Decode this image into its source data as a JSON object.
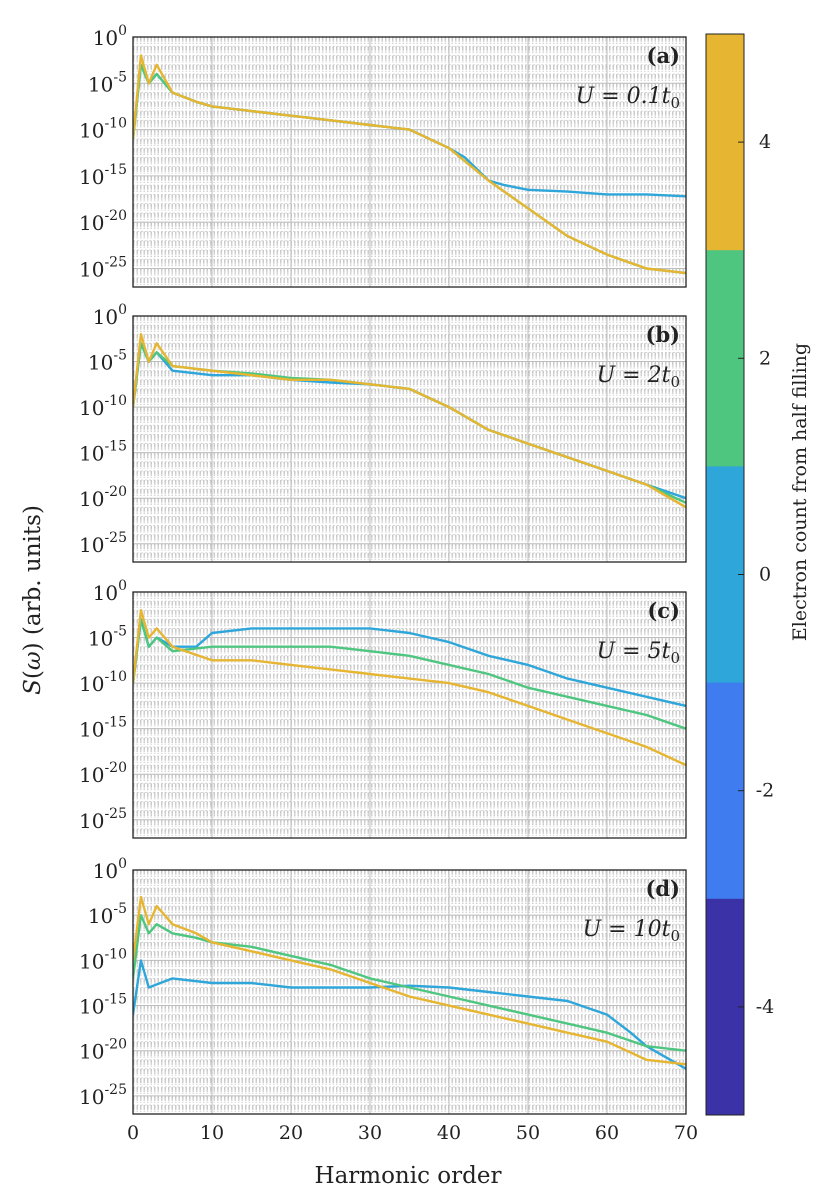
{
  "figure": {
    "ylabel": "S(ω) (arb. units)",
    "xlabel": "Harmonic order"
  },
  "chart_data": {
    "type": "line",
    "yscale": "log",
    "xlim": [
      0,
      70
    ],
    "ylim": [
      1e-27,
      1
    ],
    "xticks": [
      0,
      10,
      20,
      30,
      40,
      50,
      60,
      70
    ],
    "yticks": [
      {
        "exp": 0,
        "text": "10",
        "sup": "0"
      },
      {
        "exp": -5,
        "text": "10",
        "sup": "-5"
      },
      {
        "exp": -10,
        "text": "10",
        "sup": "-10"
      },
      {
        "exp": -15,
        "text": "10",
        "sup": "-15"
      },
      {
        "exp": -20,
        "text": "10",
        "sup": "-20"
      },
      {
        "exp": -25,
        "text": "10",
        "sup": "-25"
      }
    ],
    "colors": {
      "blue": "#2ea6da",
      "green": "#4ec680",
      "yellow": "#e6b531"
    },
    "panels": [
      {
        "label": "(a)",
        "annotation": {
          "lhs": "U",
          "rhs": "0.1t",
          "sub": "0"
        },
        "series": [
          {
            "name": "0",
            "color": "#2ea6da",
            "x": [
              0,
              1,
              2,
              3,
              5,
              8,
              10,
              15,
              20,
              25,
              30,
              35,
              40,
              42,
              45,
              47,
              50,
              55,
              60,
              65,
              70
            ],
            "log10y": [
              -11,
              -3,
              -5,
              -4,
              -6,
              -7,
              -7.5,
              -8,
              -8.5,
              -9,
              -9.5,
              -10,
              -12,
              -13,
              -15.5,
              -16,
              -16.5,
              -16.7,
              -17,
              -17,
              -17.2
            ]
          },
          {
            "name": "2",
            "color": "#4ec680",
            "x": [
              0,
              1,
              2,
              3,
              5,
              8,
              10,
              15,
              20,
              25,
              30,
              35,
              40,
              45,
              50,
              55,
              60,
              65,
              70
            ],
            "log10y": [
              -11,
              -3,
              -5,
              -4,
              -6,
              -7,
              -7.5,
              -8,
              -8.5,
              -9,
              -9.5,
              -10,
              -12,
              -15.5,
              -18.5,
              -21.5,
              -23.5,
              -25,
              -25.5
            ]
          },
          {
            "name": "4",
            "color": "#e6b531",
            "x": [
              0,
              1,
              2,
              3,
              5,
              8,
              10,
              15,
              20,
              25,
              30,
              35,
              40,
              45,
              50,
              55,
              60,
              65,
              70
            ],
            "log10y": [
              -11,
              -2,
              -5,
              -3,
              -6,
              -7,
              -7.5,
              -8,
              -8.5,
              -9,
              -9.5,
              -10,
              -12,
              -15.5,
              -18.5,
              -21.5,
              -23.5,
              -25,
              -25.5
            ]
          }
        ]
      },
      {
        "label": "(b)",
        "annotation": {
          "lhs": "U",
          "rhs": "2t",
          "sub": "0"
        },
        "series": [
          {
            "name": "0",
            "color": "#2ea6da",
            "x": [
              0,
              1,
              2,
              3,
              5,
              10,
              15,
              20,
              25,
              30,
              35,
              40,
              45,
              50,
              55,
              60,
              65,
              70
            ],
            "log10y": [
              -10,
              -3,
              -5,
              -4,
              -6,
              -6.5,
              -6.5,
              -7,
              -7.3,
              -7.5,
              -8,
              -10,
              -12.5,
              -14,
              -15.5,
              -17,
              -18.5,
              -20
            ]
          },
          {
            "name": "2",
            "color": "#4ec680",
            "x": [
              0,
              1,
              2,
              3,
              5,
              10,
              15,
              20,
              25,
              30,
              35,
              40,
              45,
              50,
              55,
              60,
              65,
              70
            ],
            "log10y": [
              -10,
              -3,
              -5,
              -4,
              -5.5,
              -6,
              -6.3,
              -6.8,
              -7,
              -7.5,
              -8,
              -10,
              -12.5,
              -14,
              -15.5,
              -17,
              -18.5,
              -20.5
            ]
          },
          {
            "name": "4",
            "color": "#e6b531",
            "x": [
              0,
              1,
              2,
              3,
              5,
              10,
              15,
              20,
              25,
              30,
              35,
              40,
              45,
              50,
              55,
              60,
              65,
              70
            ],
            "log10y": [
              -10,
              -2,
              -5,
              -3,
              -5.5,
              -6,
              -6.5,
              -7,
              -7,
              -7.5,
              -8,
              -10,
              -12.5,
              -14,
              -15.5,
              -17,
              -18.5,
              -21
            ]
          }
        ]
      },
      {
        "label": "(c)",
        "annotation": {
          "lhs": "U",
          "rhs": "5t",
          "sub": "0"
        },
        "series": [
          {
            "name": "0",
            "color": "#2ea6da",
            "x": [
              0,
              1,
              2,
              3,
              5,
              8,
              10,
              15,
              20,
              25,
              30,
              35,
              40,
              45,
              50,
              55,
              60,
              65,
              70
            ],
            "log10y": [
              -10,
              -3,
              -6,
              -5,
              -6,
              -6,
              -4.5,
              -4,
              -4,
              -4,
              -4,
              -4.5,
              -5.5,
              -7,
              -8,
              -9.5,
              -10.5,
              -11.5,
              -12.5
            ]
          },
          {
            "name": "2",
            "color": "#4ec680",
            "x": [
              0,
              1,
              2,
              3,
              5,
              10,
              15,
              20,
              25,
              30,
              35,
              40,
              45,
              50,
              55,
              60,
              65,
              70
            ],
            "log10y": [
              -10,
              -3,
              -6,
              -5,
              -6.5,
              -6,
              -6,
              -6,
              -6,
              -6.5,
              -7,
              -8,
              -9,
              -10.5,
              -11.5,
              -12.5,
              -13.5,
              -15
            ]
          },
          {
            "name": "4",
            "color": "#e6b531",
            "x": [
              0,
              1,
              2,
              3,
              5,
              10,
              15,
              20,
              25,
              30,
              35,
              40,
              45,
              50,
              55,
              60,
              65,
              70
            ],
            "log10y": [
              -10,
              -2,
              -5,
              -4,
              -6,
              -7.5,
              -7.5,
              -8,
              -8.5,
              -9,
              -9.5,
              -10,
              -11,
              -12.5,
              -14,
              -15.5,
              -17,
              -19
            ]
          }
        ]
      },
      {
        "label": "(d)",
        "annotation": {
          "lhs": "U",
          "rhs": "10t",
          "sub": "0"
        },
        "series": [
          {
            "name": "0",
            "color": "#2ea6da",
            "x": [
              0,
              1,
              2,
              5,
              10,
              15,
              20,
              25,
              30,
              35,
              40,
              45,
              50,
              55,
              60,
              63,
              65,
              70
            ],
            "log10y": [
              -16,
              -10,
              -13,
              -12,
              -12.5,
              -12.5,
              -13,
              -13,
              -13,
              -12.8,
              -13,
              -13.5,
              -14,
              -14.5,
              -16,
              -18,
              -19.5,
              -22
            ]
          },
          {
            "name": "2",
            "color": "#4ec680",
            "x": [
              0,
              1,
              2,
              3,
              5,
              8,
              10,
              15,
              20,
              25,
              30,
              35,
              40,
              45,
              50,
              55,
              60,
              65,
              70
            ],
            "log10y": [
              -12,
              -5,
              -7,
              -6,
              -7,
              -7.5,
              -8,
              -8.5,
              -9.5,
              -10.5,
              -12,
              -13,
              -14,
              -15,
              -16,
              -17,
              -18,
              -19.5,
              -20
            ]
          },
          {
            "name": "4",
            "color": "#e6b531",
            "x": [
              0,
              1,
              2,
              3,
              5,
              8,
              10,
              15,
              20,
              25,
              30,
              35,
              40,
              45,
              50,
              55,
              60,
              65,
              70
            ],
            "log10y": [
              -10,
              -3,
              -6,
              -4,
              -6,
              -7,
              -8,
              -9,
              -10,
              -11,
              -12.5,
              -14,
              -15,
              -16,
              -17,
              -18,
              -19,
              -21,
              -21.5
            ]
          }
        ]
      }
    ],
    "colorbar": {
      "label": "Electron count from half filling",
      "ticks": [
        "4",
        "2",
        "0",
        "-2",
        "-4"
      ],
      "segments": [
        "#e6b531",
        "#4ec680",
        "#2ea6da",
        "#3f7cf0",
        "#3a32a6"
      ]
    }
  }
}
